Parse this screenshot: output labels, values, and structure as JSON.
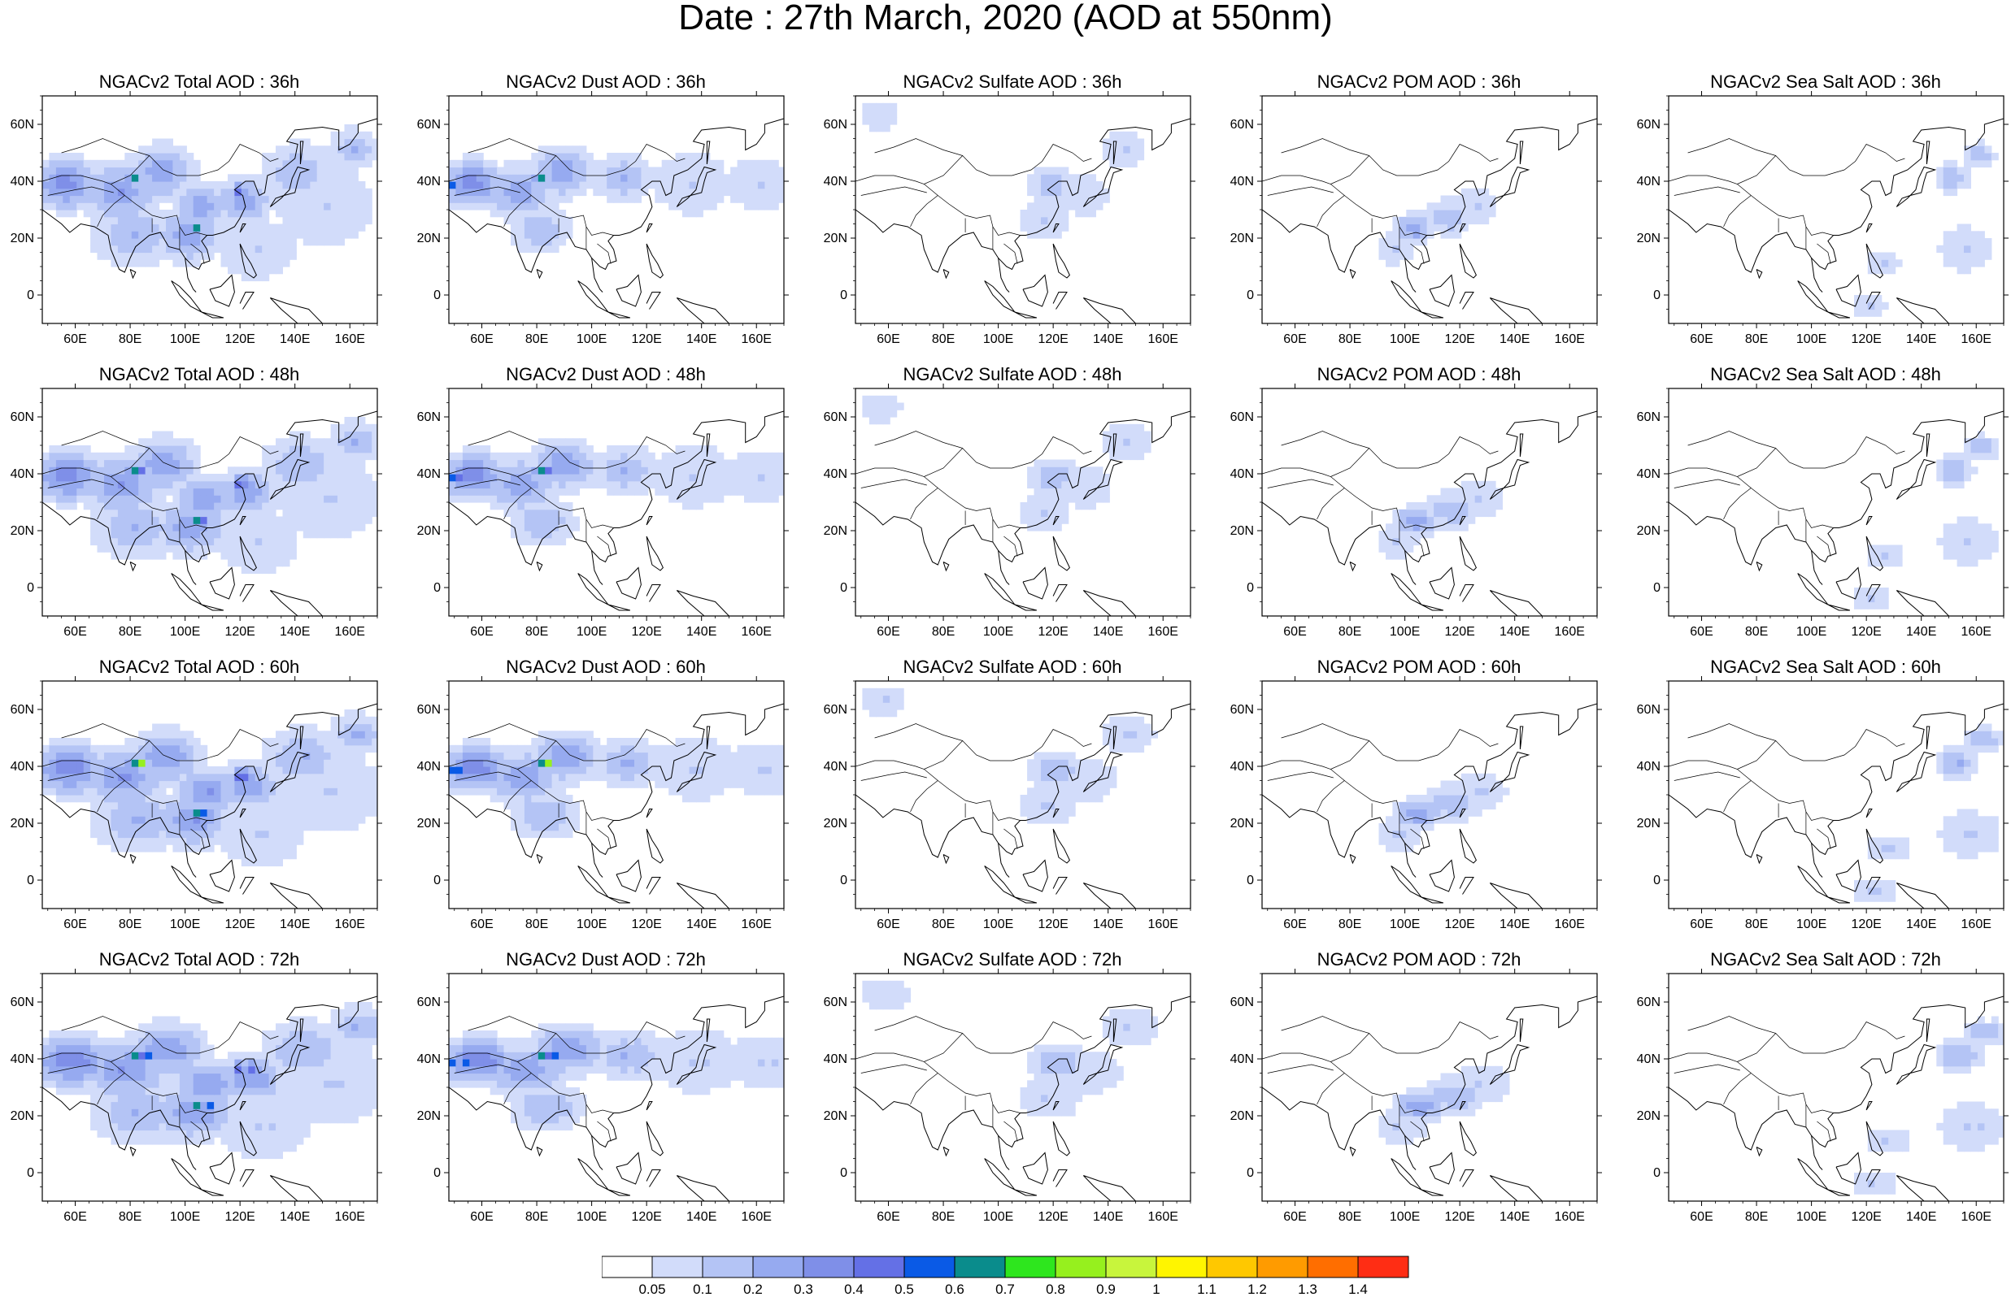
{
  "figure": {
    "title": "Date : 27th March, 2020 (AOD at 550nm)"
  },
  "axes": {
    "x_tick_labels": [
      "60E",
      "80E",
      "100E",
      "120E",
      "140E",
      "160E"
    ],
    "y_tick_labels": [
      "60N",
      "40N",
      "20N",
      "0"
    ]
  },
  "panels": [
    {
      "title": "NGACv2 Total AOD : 36h",
      "species": "total",
      "hour": 36
    },
    {
      "title": "NGACv2 Dust AOD : 36h",
      "species": "dust",
      "hour": 36
    },
    {
      "title": "NGACv2 Sulfate AOD : 36h",
      "species": "sulfate",
      "hour": 36
    },
    {
      "title": "NGACv2 POM AOD : 36h",
      "species": "pom",
      "hour": 36
    },
    {
      "title": "NGACv2 Sea Salt AOD : 36h",
      "species": "seasalt",
      "hour": 36
    },
    {
      "title": "NGACv2 Total AOD : 48h",
      "species": "total",
      "hour": 48
    },
    {
      "title": "NGACv2 Dust AOD : 48h",
      "species": "dust",
      "hour": 48
    },
    {
      "title": "NGACv2 Sulfate AOD : 48h",
      "species": "sulfate",
      "hour": 48
    },
    {
      "title": "NGACv2 POM AOD : 48h",
      "species": "pom",
      "hour": 48
    },
    {
      "title": "NGACv2 Sea Salt AOD : 48h",
      "species": "seasalt",
      "hour": 48
    },
    {
      "title": "NGACv2 Total AOD : 60h",
      "species": "total",
      "hour": 60
    },
    {
      "title": "NGACv2 Dust AOD : 60h",
      "species": "dust",
      "hour": 60
    },
    {
      "title": "NGACv2 Sulfate AOD : 60h",
      "species": "sulfate",
      "hour": 60
    },
    {
      "title": "NGACv2 POM AOD : 60h",
      "species": "pom",
      "hour": 60
    },
    {
      "title": "NGACv2 Sea Salt AOD : 60h",
      "species": "seasalt",
      "hour": 60
    },
    {
      "title": "NGACv2 Total AOD : 72h",
      "species": "total",
      "hour": 72
    },
    {
      "title": "NGACv2 Dust AOD : 72h",
      "species": "dust",
      "hour": 72
    },
    {
      "title": "NGACv2 Sulfate AOD : 72h",
      "species": "sulfate",
      "hour": 72
    },
    {
      "title": "NGACv2 POM AOD : 72h",
      "species": "pom",
      "hour": 72
    },
    {
      "title": "NGACv2 Sea Salt  AOD : 72h",
      "species": "seasalt",
      "hour": 72
    }
  ],
  "colorbar": {
    "labels": [
      "0.05",
      "0.1",
      "0.2",
      "0.3",
      "0.4",
      "0.5",
      "0.6",
      "0.7",
      "0.8",
      "0.9",
      "1",
      "1.1",
      "1.2",
      "1.3",
      "1.4"
    ],
    "colors": [
      "#ffffff",
      "#d2dcfa",
      "#b4c4f5",
      "#96aaf0",
      "#7f8fe8",
      "#6470e6",
      "#0a5ae6",
      "#0a8c8c",
      "#2ee61e",
      "#96f01e",
      "#c8f53c",
      "#fff500",
      "#ffc800",
      "#ff9b00",
      "#ff6e00",
      "#ff2d14"
    ]
  },
  "aod_blobs": {
    "total": [
      {
        "lon": 55,
        "lat": 38,
        "r": 14,
        "level": 4
      },
      {
        "lon": 75,
        "lat": 35,
        "r": 16,
        "level": 3
      },
      {
        "lon": 90,
        "lat": 42,
        "r": 14,
        "level": 3
      },
      {
        "lon": 105,
        "lat": 30,
        "r": 12,
        "level": 3
      },
      {
        "lon": 120,
        "lat": 32,
        "r": 12,
        "level": 3
      },
      {
        "lon": 140,
        "lat": 42,
        "r": 14,
        "level": 2
      },
      {
        "lon": 150,
        "lat": 30,
        "r": 18,
        "level": 1
      },
      {
        "lon": 80,
        "lat": 20,
        "r": 16,
        "level": 2
      },
      {
        "lon": 100,
        "lat": 20,
        "r": 14,
        "level": 3
      },
      {
        "lon": 125,
        "lat": 15,
        "r": 14,
        "level": 1
      },
      {
        "lon": 160,
        "lat": 50,
        "r": 10,
        "level": 2
      },
      {
        "lon": 80,
        "lat": 40,
        "r": 3,
        "level": 8
      },
      {
        "lon": 103,
        "lat": 23,
        "r": 3,
        "level": 8
      },
      {
        "lon": 118,
        "lat": 36,
        "r": 3,
        "level": 8
      }
    ],
    "dust": [
      {
        "lon": 55,
        "lat": 38,
        "r": 13,
        "level": 4
      },
      {
        "lon": 72,
        "lat": 35,
        "r": 14,
        "level": 3
      },
      {
        "lon": 88,
        "lat": 42,
        "r": 13,
        "level": 3
      },
      {
        "lon": 110,
        "lat": 40,
        "r": 12,
        "level": 2
      },
      {
        "lon": 135,
        "lat": 38,
        "r": 14,
        "level": 1
      },
      {
        "lon": 160,
        "lat": 38,
        "r": 12,
        "level": 1
      },
      {
        "lon": 80,
        "lat": 22,
        "r": 12,
        "level": 2
      },
      {
        "lon": 80,
        "lat": 40,
        "r": 3,
        "level": 8
      },
      {
        "lon": 48,
        "lat": 38,
        "r": 3,
        "level": 7
      }
    ],
    "sulfate": [
      {
        "lon": 118,
        "lat": 38,
        "r": 9,
        "level": 2
      },
      {
        "lon": 130,
        "lat": 34,
        "r": 9,
        "level": 1
      },
      {
        "lon": 115,
        "lat": 25,
        "r": 9,
        "level": 1
      },
      {
        "lon": 55,
        "lat": 62,
        "r": 7,
        "level": 1
      },
      {
        "lon": 145,
        "lat": 50,
        "r": 8,
        "level": 1
      }
    ],
    "pom": [
      {
        "lon": 102,
        "lat": 22,
        "r": 8,
        "level": 3
      },
      {
        "lon": 115,
        "lat": 26,
        "r": 9,
        "level": 2
      },
      {
        "lon": 125,
        "lat": 30,
        "r": 8,
        "level": 1
      },
      {
        "lon": 95,
        "lat": 15,
        "r": 7,
        "level": 1
      }
    ],
    "seasalt": [
      {
        "lon": 150,
        "lat": 40,
        "r": 7,
        "level": 2
      },
      {
        "lon": 160,
        "lat": 48,
        "r": 6,
        "level": 2
      },
      {
        "lon": 155,
        "lat": 15,
        "r": 10,
        "level": 1
      },
      {
        "lon": 125,
        "lat": 10,
        "r": 6,
        "level": 1
      },
      {
        "lon": 120,
        "lat": -5,
        "r": 6,
        "level": 1
      }
    ]
  }
}
